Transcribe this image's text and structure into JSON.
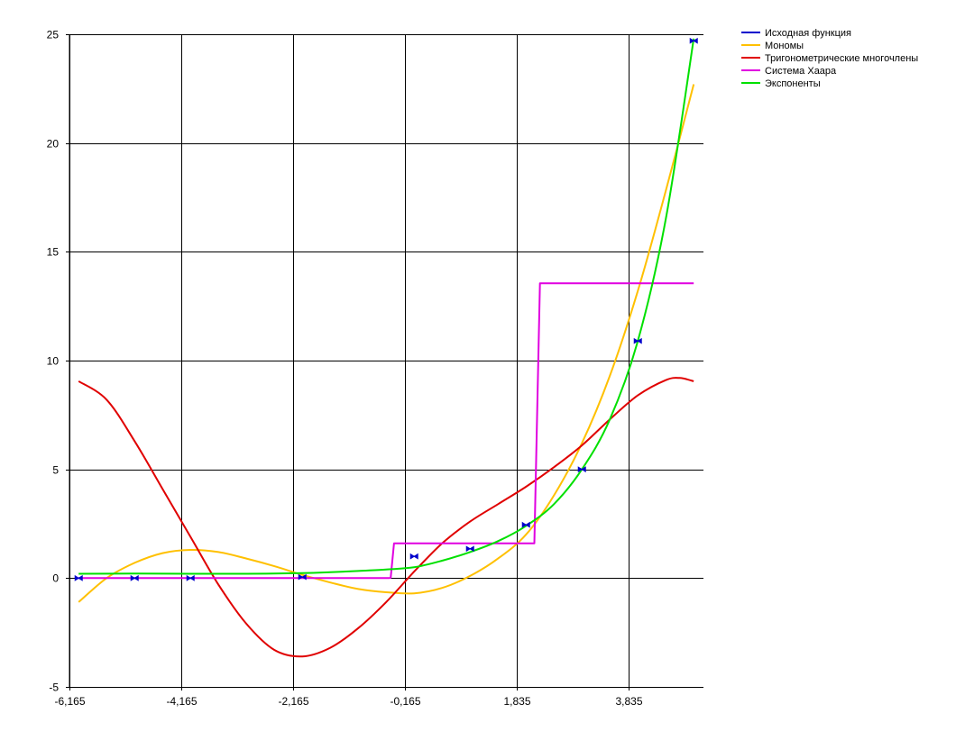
{
  "chart_data": {
    "type": "line",
    "title": "",
    "xlabel": "",
    "ylabel": "",
    "xlim": [
      -6.165,
      5.1
    ],
    "ylim": [
      -5,
      25
    ],
    "grid": true,
    "legend_position": "top-right",
    "x_ticks": [
      {
        "value": -6.165,
        "label": "-6,165"
      },
      {
        "value": -4.165,
        "label": "-4,165"
      },
      {
        "value": -2.165,
        "label": "-2,165"
      },
      {
        "value": -0.165,
        "label": "-0,165"
      },
      {
        "value": 1.835,
        "label": "1,835"
      },
      {
        "value": 3.835,
        "label": "3,835"
      }
    ],
    "y_ticks": [
      {
        "value": -5,
        "label": "-5"
      },
      {
        "value": 0,
        "label": "0"
      },
      {
        "value": 5,
        "label": "5"
      },
      {
        "value": 10,
        "label": "10"
      },
      {
        "value": 15,
        "label": "15"
      },
      {
        "value": 20,
        "label": "20"
      },
      {
        "value": 25,
        "label": "25"
      }
    ],
    "series": [
      {
        "name": "Исходная функция",
        "color": "#0000cc",
        "style": "markers",
        "points": [
          [
            -6.0,
            0.0
          ],
          [
            -5.0,
            0.0
          ],
          [
            -4.0,
            0.0
          ],
          [
            -2.0,
            0.05
          ],
          [
            0.0,
            1.0
          ],
          [
            1.0,
            1.35
          ],
          [
            2.0,
            2.45
          ],
          [
            3.0,
            5.0
          ],
          [
            4.0,
            10.9
          ],
          [
            5.0,
            24.7
          ]
        ]
      },
      {
        "name": "Мономы",
        "color": "#ffc000",
        "style": "line",
        "points": [
          [
            -6.0,
            -1.1
          ],
          [
            -5.5,
            0.0
          ],
          [
            -5.0,
            0.7
          ],
          [
            -4.5,
            1.15
          ],
          [
            -4.0,
            1.3
          ],
          [
            -3.5,
            1.2
          ],
          [
            -3.0,
            0.9
          ],
          [
            -2.5,
            0.55
          ],
          [
            -2.0,
            0.15
          ],
          [
            -1.5,
            -0.2
          ],
          [
            -1.0,
            -0.5
          ],
          [
            -0.5,
            -0.65
          ],
          [
            0.0,
            -0.7
          ],
          [
            0.5,
            -0.45
          ],
          [
            1.0,
            0.1
          ],
          [
            1.5,
            0.9
          ],
          [
            2.0,
            2.0
          ],
          [
            2.5,
            3.8
          ],
          [
            3.0,
            6.2
          ],
          [
            3.5,
            9.3
          ],
          [
            4.0,
            13.2
          ],
          [
            4.5,
            17.8
          ],
          [
            5.0,
            22.7
          ]
        ]
      },
      {
        "name": "Тригонометрические многочлены",
        "color": "#e00000",
        "style": "line",
        "points": [
          [
            -6.0,
            9.05
          ],
          [
            -5.5,
            8.2
          ],
          [
            -5.0,
            6.3
          ],
          [
            -4.5,
            4.1
          ],
          [
            -4.0,
            1.9
          ],
          [
            -3.5,
            -0.3
          ],
          [
            -3.0,
            -2.1
          ],
          [
            -2.5,
            -3.3
          ],
          [
            -2.0,
            -3.6
          ],
          [
            -1.5,
            -3.2
          ],
          [
            -1.0,
            -2.3
          ],
          [
            -0.5,
            -1.1
          ],
          [
            0.0,
            0.3
          ],
          [
            0.5,
            1.6
          ],
          [
            1.0,
            2.6
          ],
          [
            1.5,
            3.4
          ],
          [
            2.0,
            4.2
          ],
          [
            2.5,
            5.1
          ],
          [
            3.0,
            6.1
          ],
          [
            3.5,
            7.3
          ],
          [
            4.0,
            8.4
          ],
          [
            4.5,
            9.1
          ],
          [
            4.75,
            9.2
          ],
          [
            5.0,
            9.05
          ]
        ]
      },
      {
        "name": "Система Хаара",
        "color": "#e000e0",
        "style": "line",
        "points": [
          [
            -6.0,
            0.0
          ],
          [
            -0.45,
            0.0
          ],
          [
            -0.45,
            0.0
          ],
          [
            -0.42,
            0.02
          ],
          [
            -0.36,
            1.6
          ],
          [
            2.15,
            1.6
          ],
          [
            2.25,
            13.55
          ],
          [
            5.0,
            13.55
          ]
        ]
      },
      {
        "name": "Экспоненты",
        "color": "#00e000",
        "style": "line",
        "points": [
          [
            -6.0,
            0.2
          ],
          [
            -5.0,
            0.21
          ],
          [
            -4.0,
            0.2
          ],
          [
            -3.0,
            0.2
          ],
          [
            -2.0,
            0.23
          ],
          [
            -1.5,
            0.27
          ],
          [
            -1.0,
            0.33
          ],
          [
            -0.5,
            0.4
          ],
          [
            0.0,
            0.5
          ],
          [
            0.5,
            0.8
          ],
          [
            1.0,
            1.2
          ],
          [
            1.5,
            1.7
          ],
          [
            2.0,
            2.4
          ],
          [
            2.5,
            3.4
          ],
          [
            3.0,
            5.0
          ],
          [
            3.5,
            7.3
          ],
          [
            4.0,
            10.9
          ],
          [
            4.5,
            16.5
          ],
          [
            5.0,
            24.8
          ]
        ]
      }
    ]
  }
}
